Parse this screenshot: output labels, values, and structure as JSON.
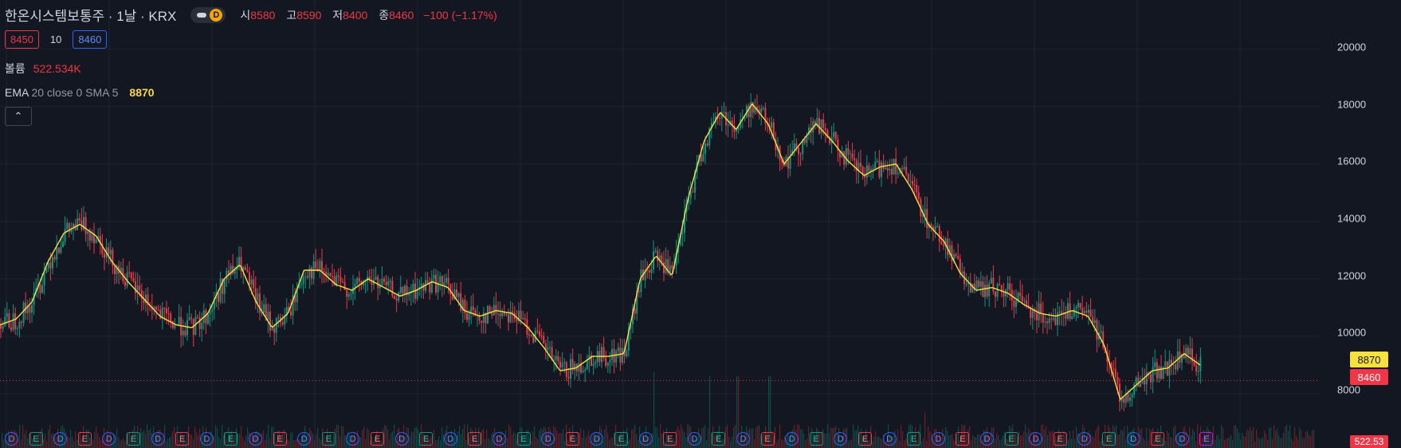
{
  "header": {
    "title": "한온시스템보통주 · 1날 · KRX",
    "market_badge": "D",
    "ohlc": {
      "open_label": "시",
      "open": "8580",
      "high_label": "고",
      "high": "8590",
      "low_label": "저",
      "low": "8400",
      "close_label": "종",
      "close": "8460",
      "change": "−100 (−1.17%)"
    }
  },
  "order": {
    "sell_price": "8450",
    "quantity": "10",
    "buy_price": "8460"
  },
  "volume_legend": {
    "label": "볼륨",
    "value": "522.534K"
  },
  "ema_legend": {
    "label": "EMA",
    "params": "20 close 0 SMA 5",
    "value": "8870"
  },
  "price_axis": {
    "ticks": [
      "20000",
      "18000",
      "16000",
      "14000",
      "12000",
      "10000",
      "8000"
    ]
  },
  "price_tags": {
    "ema": "8870",
    "last": "8460",
    "volume": "522.53"
  },
  "events": [
    "D",
    "E",
    "D",
    "E",
    "D",
    "E",
    "D",
    "E",
    "D",
    "E",
    "D",
    "E",
    "D",
    "E",
    "D",
    "E",
    "D",
    "E",
    "D",
    "E",
    "D",
    "E",
    "D",
    "E",
    "D",
    "E",
    "D",
    "E",
    "D",
    "E",
    "D",
    "E",
    "D",
    "E",
    "D",
    "E",
    "D",
    "E",
    "D",
    "E",
    "D",
    "E",
    "D",
    "E",
    "D",
    "E",
    "D",
    "E",
    "D",
    "E"
  ],
  "colors": {
    "up": "#089981",
    "down": "#f23645",
    "ema": "#f7e13b",
    "background": "#131722",
    "grid": "#1e2330"
  },
  "chart_data": {
    "type": "candlestick",
    "ylim": [
      7000,
      20600
    ],
    "ema_key_points": [
      10400,
      10600,
      11200,
      12600,
      13600,
      13900,
      13500,
      12600,
      11900,
      11300,
      10700,
      10400,
      10300,
      10800,
      12000,
      12500,
      11200,
      10300,
      10800,
      12300,
      12300,
      11800,
      11600,
      12000,
      11700,
      11400,
      11600,
      11900,
      11700,
      10900,
      10700,
      10900,
      10800,
      10300,
      9600,
      8800,
      8900,
      9300,
      9300,
      9400,
      12000,
      12800,
      12100,
      14800,
      16800,
      17800,
      17200,
      18100,
      17400,
      16000,
      16700,
      17400,
      16800,
      16100,
      15600,
      15900,
      16000,
      15100,
      13900,
      13300,
      12200,
      11600,
      11700,
      11500,
      11100,
      10800,
      10700,
      10900,
      10700,
      9700,
      7800,
      8300,
      8800,
      8900,
      9400,
      9000
    ]
  }
}
